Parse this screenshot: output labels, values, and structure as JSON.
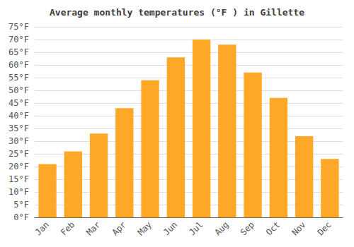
{
  "chart_data": {
    "type": "bar",
    "title": "Average monthly temperatures (°F ) in Gillette",
    "categories": [
      "Jan",
      "Feb",
      "Mar",
      "Apr",
      "May",
      "Jun",
      "Jul",
      "Aug",
      "Sep",
      "Oct",
      "Nov",
      "Dec"
    ],
    "values": [
      21,
      26,
      33,
      43,
      54,
      63,
      70,
      68,
      57,
      47,
      32,
      23
    ],
    "color": "#FFA726",
    "ylim": [
      0,
      75
    ],
    "yticks": [
      {
        "value": 0,
        "label": "0°F"
      },
      {
        "value": 5,
        "label": "5°F"
      },
      {
        "value": 10,
        "label": "10°F"
      },
      {
        "value": 15,
        "label": "15°F"
      },
      {
        "value": 20,
        "label": "20°F"
      },
      {
        "value": 25,
        "label": "25°F"
      },
      {
        "value": 30,
        "label": "30°F"
      },
      {
        "value": 35,
        "label": "35°F"
      },
      {
        "value": 40,
        "label": "40°F"
      },
      {
        "value": 45,
        "label": "45°F"
      },
      {
        "value": 50,
        "label": "50°F"
      },
      {
        "value": 55,
        "label": "55°F"
      },
      {
        "value": 60,
        "label": "60°F"
      },
      {
        "value": 65,
        "label": "65°F"
      },
      {
        "value": 70,
        "label": "70°F"
      },
      {
        "value": 75,
        "label": "75°F"
      }
    ],
    "grid": true
  }
}
